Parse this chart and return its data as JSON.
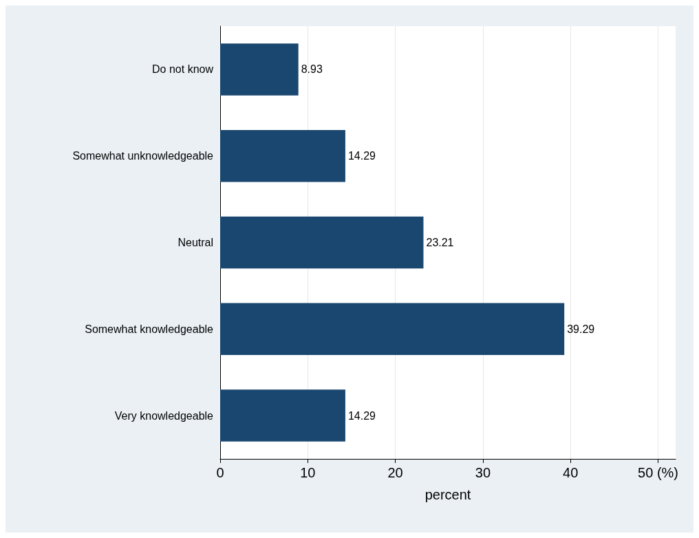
{
  "chart_data": {
    "type": "bar",
    "orientation": "horizontal",
    "xlabel": "percent",
    "categories": [
      "Do not know",
      "Somewhat unknowledgeable",
      "Neutral",
      "Somewhat knowledgeable",
      "Very knowledgeable"
    ],
    "values": [
      8.93,
      14.29,
      23.21,
      39.29,
      14.29
    ],
    "color": "#1a476f",
    "xlim": [
      0,
      52
    ],
    "xticks": [
      0,
      10,
      20,
      30,
      40,
      {
        "value": 50,
        "label": "50 (%)"
      }
    ],
    "grid": "x",
    "data_labels": true
  }
}
